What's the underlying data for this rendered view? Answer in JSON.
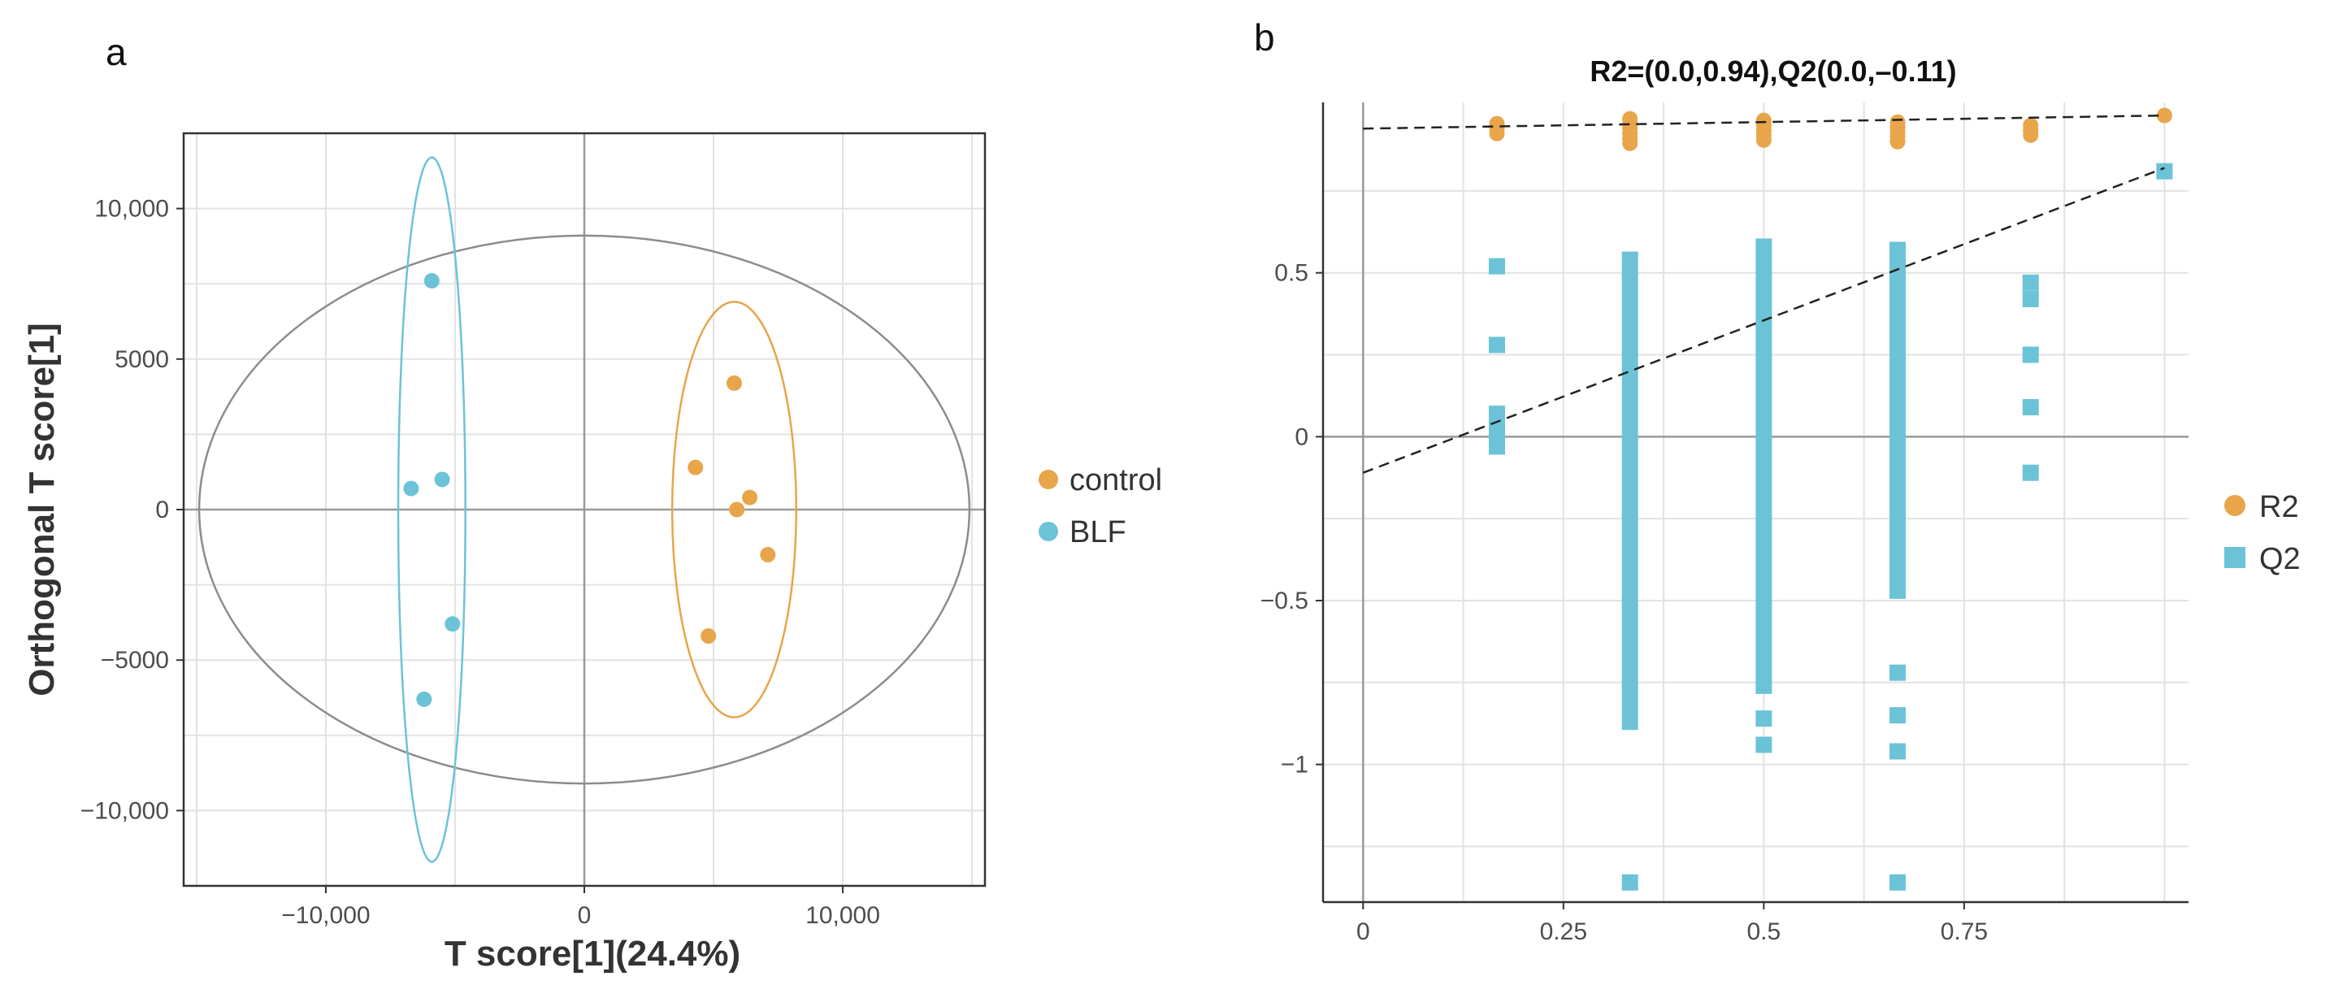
{
  "colors": {
    "control": "#E8A54A",
    "blf": "#6CC3D8",
    "grid": "#e2e2e2",
    "zero": "#999999",
    "ellipse": "#8c8c8c"
  },
  "chart_data": [
    {
      "panel_label": "a",
      "type": "scatter",
      "title": "",
      "xlabel": "T score[1](24.4%)",
      "ylabel": "Orthogonal T score[1]",
      "xlim": [
        -15500,
        15500
      ],
      "ylim": [
        -12500,
        12500
      ],
      "xticks": [
        -10000,
        0,
        10000
      ],
      "xtick_labels": [
        "−10,000",
        "0",
        "10,000"
      ],
      "yticks": [
        -10000,
        -5000,
        0,
        5000,
        10000
      ],
      "ytick_labels": [
        "−10,000",
        "−5000",
        "0",
        "5000",
        "10,000"
      ],
      "grid": true,
      "legend": "right",
      "series": [
        {
          "name": "control",
          "color": "#E8A54A",
          "points": [
            [
              5800,
              4200
            ],
            [
              4300,
              1400
            ],
            [
              6400,
              400
            ],
            [
              5900,
              0
            ],
            [
              7100,
              -1500
            ],
            [
              4800,
              -4200
            ]
          ]
        },
        {
          "name": "BLF",
          "color": "#6CC3D8",
          "points": [
            [
              -5900,
              7600
            ],
            [
              -6700,
              700
            ],
            [
              -5500,
              1000
            ],
            [
              -5100,
              -3800
            ],
            [
              -6200,
              -6300
            ]
          ]
        }
      ],
      "ellipses": [
        {
          "name": "total",
          "cx": 0,
          "cy": 0,
          "rx": 14900,
          "ry": 9100,
          "color": "#8c8c8c"
        },
        {
          "name": "control",
          "cx": 5800,
          "cy": 0,
          "rx": 2400,
          "ry": 6900,
          "color": "#E8A54A"
        },
        {
          "name": "BLF",
          "cx": -5900,
          "cy": 0,
          "rx": 1300,
          "ry": 11700,
          "color": "#6CC3D8"
        }
      ]
    },
    {
      "panel_label": "b",
      "type": "scatter",
      "title": "R2=(0.0,0.94),Q2(0.0,–0.11)",
      "xlabel": "",
      "ylabel": "",
      "xlim": [
        -0.05,
        1.03
      ],
      "ylim": [
        -1.42,
        1.02
      ],
      "xticks": [
        0,
        0.25,
        0.5,
        0.75
      ],
      "xtick_labels": [
        "0",
        "0.25",
        "0.5",
        "0.75"
      ],
      "yticks": [
        -1,
        -0.5,
        0,
        0.5
      ],
      "ytick_labels": [
        "−1",
        "−0.5",
        "0",
        "0.5"
      ],
      "grid": true,
      "legend": "right",
      "regression_lines": [
        {
          "name": "R2",
          "intercept": 0.94,
          "slope": 0.04
        },
        {
          "name": "Q2",
          "intercept": -0.11,
          "slope": 0.93
        }
      ],
      "series": [
        {
          "name": "R2",
          "color": "#E8A54A",
          "marker": "circle",
          "points": [
            [
              0.167,
              0.955
            ],
            [
              0.167,
              0.94
            ],
            [
              0.167,
              0.925
            ],
            [
              0.333,
              0.97
            ],
            [
              0.333,
              0.955
            ],
            [
              0.333,
              0.94
            ],
            [
              0.333,
              0.925
            ],
            [
              0.333,
              0.91
            ],
            [
              0.333,
              0.895
            ],
            [
              0.5,
              0.965
            ],
            [
              0.5,
              0.95
            ],
            [
              0.5,
              0.935
            ],
            [
              0.5,
              0.92
            ],
            [
              0.5,
              0.905
            ],
            [
              0.667,
              0.96
            ],
            [
              0.667,
              0.945
            ],
            [
              0.667,
              0.93
            ],
            [
              0.667,
              0.915
            ],
            [
              0.667,
              0.9
            ],
            [
              0.833,
              0.95
            ],
            [
              0.833,
              0.935
            ],
            [
              0.833,
              0.92
            ],
            [
              1.0,
              0.98
            ]
          ]
        },
        {
          "name": "Q2",
          "color": "#6CC3D8",
          "marker": "square",
          "points": [
            [
              0.167,
              0.52
            ],
            [
              0.167,
              0.28
            ],
            [
              0.167,
              0.07
            ],
            [
              0.167,
              0.04
            ],
            [
              0.167,
              0.01
            ],
            [
              0.167,
              -0.03
            ],
            [
              1.0,
              0.81
            ],
            [
              0.833,
              0.47
            ],
            [
              0.833,
              0.42
            ],
            [
              0.833,
              0.25
            ],
            [
              0.833,
              0.09
            ],
            [
              0.833,
              -0.11
            ],
            [
              0.333,
              -1.36
            ],
            [
              0.5,
              -0.86
            ],
            [
              0.5,
              -0.94
            ],
            [
              0.667,
              -0.72
            ],
            [
              0.667,
              -0.85
            ],
            [
              0.667,
              -0.96
            ],
            [
              0.667,
              -1.36
            ]
          ],
          "bars": [
            {
              "x": 0.333,
              "y1": -0.87,
              "y2": 0.54
            },
            {
              "x": 0.5,
              "y1": -0.76,
              "y2": 0.58
            },
            {
              "x": 0.667,
              "y1": -0.47,
              "y2": 0.57
            }
          ]
        }
      ]
    }
  ]
}
